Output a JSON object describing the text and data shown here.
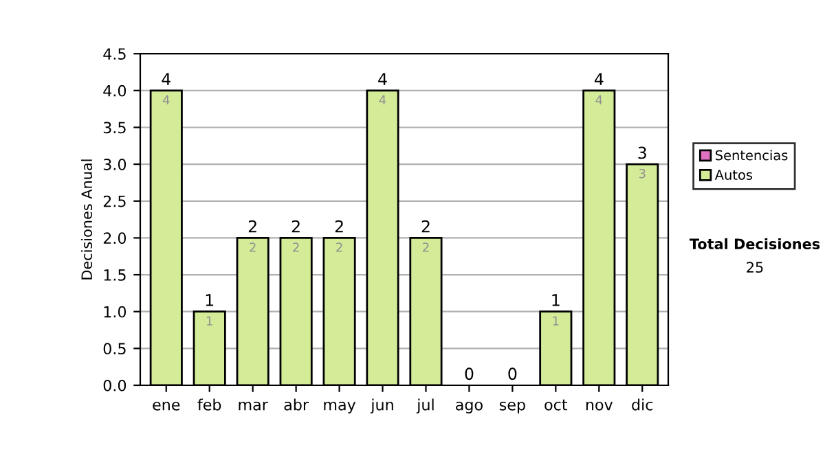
{
  "chart_data": {
    "type": "bar",
    "stacked": true,
    "ylabel": "Decisiones Anual",
    "categories": [
      "ene",
      "feb",
      "mar",
      "abr",
      "may",
      "jun",
      "jul",
      "ago",
      "sep",
      "oct",
      "nov",
      "dic"
    ],
    "series": [
      {
        "name": "Sentencias",
        "color": "#e070c0",
        "values": [
          0,
          0,
          0,
          0,
          0,
          0,
          0,
          0,
          0,
          0,
          0,
          0
        ]
      },
      {
        "name": "Autos",
        "color": "#d4ec98",
        "values": [
          4,
          1,
          2,
          2,
          2,
          4,
          2,
          0,
          0,
          1,
          4,
          3
        ],
        "value_labels": [
          "4",
          "1",
          "2",
          "2",
          "2",
          "4",
          "2",
          null,
          null,
          "1",
          "4",
          "3"
        ]
      }
    ],
    "totals": [
      "4",
      "1",
      "2",
      "2",
      "2",
      "4",
      "2",
      "0",
      "0",
      "1",
      "4",
      "3"
    ],
    "ylim": [
      0,
      4.5
    ],
    "yticks": [
      {
        "value": 0,
        "label": "0.0"
      },
      {
        "value": 0.5,
        "label": "0.5"
      },
      {
        "value": 1,
        "label": "1.0"
      },
      {
        "value": 1.5,
        "label": "1.5"
      },
      {
        "value": 2,
        "label": "2.0"
      },
      {
        "value": 2.5,
        "label": "2.5"
      },
      {
        "value": 3,
        "label": "3.0"
      },
      {
        "value": 3.5,
        "label": "3.5"
      },
      {
        "value": 4,
        "label": "4.0"
      },
      {
        "value": 4.5,
        "label": "4.5"
      }
    ],
    "grid": "y",
    "legend": "right",
    "annotations": [
      "Total Decisiones",
      "25"
    ]
  }
}
